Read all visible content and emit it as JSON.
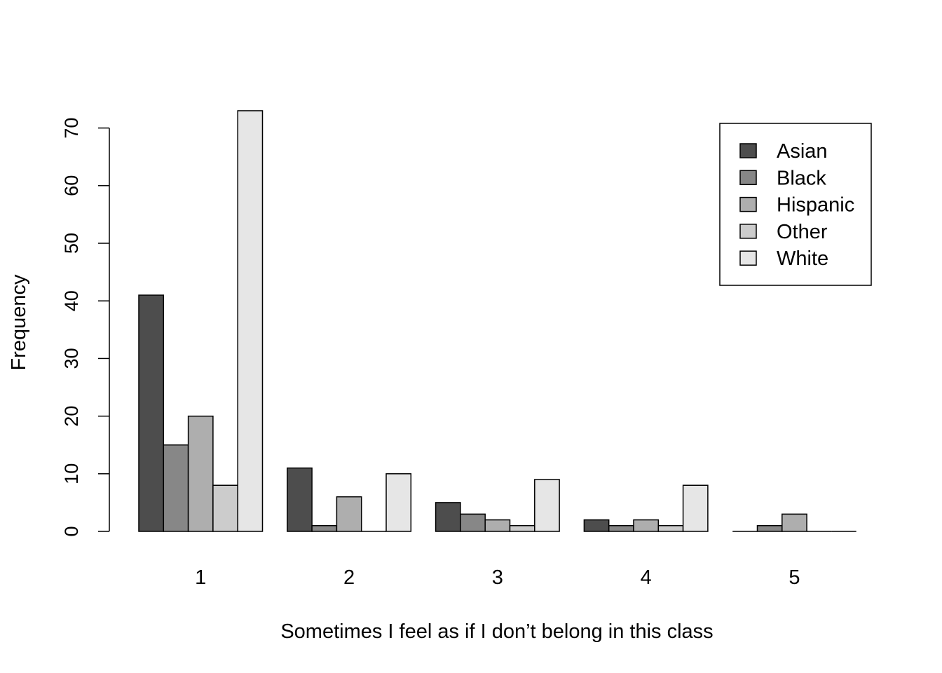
{
  "chart_data": {
    "type": "bar",
    "layout": "grouped",
    "title": "",
    "xlabel": "Sometimes I feel as if I don’t belong in this class",
    "ylabel": "Frequency",
    "categories": [
      "1",
      "2",
      "3",
      "4",
      "5"
    ],
    "y_ticks": [
      "0",
      "10",
      "20",
      "30",
      "40",
      "50",
      "60",
      "70"
    ],
    "ylim": [
      0,
      73
    ],
    "grid": false,
    "legend_position": "top-right",
    "series": [
      {
        "name": "Asian",
        "color": "#4d4d4d",
        "values": [
          41,
          11,
          5,
          2,
          0
        ]
      },
      {
        "name": "Black",
        "color": "#878787",
        "values": [
          15,
          1,
          3,
          1,
          1
        ]
      },
      {
        "name": "Hispanic",
        "color": "#aeaeae",
        "values": [
          20,
          6,
          2,
          2,
          3
        ]
      },
      {
        "name": "Other",
        "color": "#cccccc",
        "values": [
          8,
          0,
          1,
          1,
          0
        ]
      },
      {
        "name": "White",
        "color": "#e6e6e6",
        "values": [
          73,
          10,
          9,
          8,
          0
        ]
      }
    ]
  }
}
